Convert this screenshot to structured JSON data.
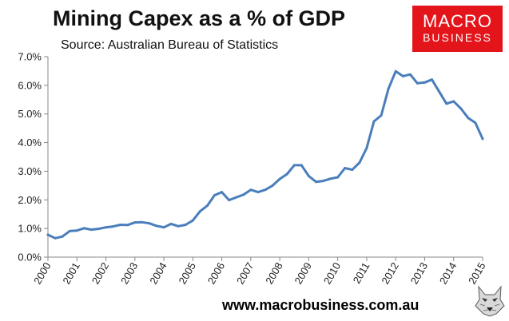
{
  "title": "Mining Capex as a % of GDP",
  "subtitle": "Source: Australian Bureau of Statistics",
  "logo": {
    "line1": "MACRO",
    "line2": "BUSINESS"
  },
  "footer": "www.macrobusiness.com.au",
  "colors": {
    "line": "#4a7ebb",
    "logo_bg": "#e4141b",
    "axis": "#888888"
  },
  "chart_data": {
    "type": "line",
    "title": "Mining Capex as a % of GDP",
    "xlabel": "",
    "ylabel": "",
    "xlim": [
      2000,
      2015
    ],
    "ylim": [
      0,
      7
    ],
    "grid": false,
    "y_ticks": [
      {
        "value": 0,
        "label": "0.0%"
      },
      {
        "value": 1,
        "label": "1.0%"
      },
      {
        "value": 2,
        "label": "2.0%"
      },
      {
        "value": 3,
        "label": "3.0%"
      },
      {
        "value": 4,
        "label": "4.0%"
      },
      {
        "value": 5,
        "label": "5.0%"
      },
      {
        "value": 6,
        "label": "6.0%"
      },
      {
        "value": 7,
        "label": "7.0%"
      }
    ],
    "x_ticks": [
      {
        "value": 2000,
        "label": "2000"
      },
      {
        "value": 2001,
        "label": "2001"
      },
      {
        "value": 2002,
        "label": "2002"
      },
      {
        "value": 2003,
        "label": "2003"
      },
      {
        "value": 2004,
        "label": "2004"
      },
      {
        "value": 2005,
        "label": "2005"
      },
      {
        "value": 2006,
        "label": "2006"
      },
      {
        "value": 2007,
        "label": "2007"
      },
      {
        "value": 2008,
        "label": "2008"
      },
      {
        "value": 2009,
        "label": "2009"
      },
      {
        "value": 2010,
        "label": "2010"
      },
      {
        "value": 2011,
        "label": "2011"
      },
      {
        "value": 2012,
        "label": "2012"
      },
      {
        "value": 2013,
        "label": "2013"
      },
      {
        "value": 2014,
        "label": "2014"
      },
      {
        "value": 2015,
        "label": "2015"
      }
    ],
    "series": [
      {
        "name": "Mining Capex % of GDP",
        "x": [
          2000.0,
          2000.25,
          2000.5,
          2000.75,
          2001.0,
          2001.25,
          2001.5,
          2001.75,
          2002.0,
          2002.25,
          2002.5,
          2002.75,
          2003.0,
          2003.25,
          2003.5,
          2003.75,
          2004.0,
          2004.25,
          2004.5,
          2004.75,
          2005.0,
          2005.25,
          2005.5,
          2005.75,
          2006.0,
          2006.25,
          2006.5,
          2006.75,
          2007.0,
          2007.25,
          2007.5,
          2007.75,
          2008.0,
          2008.25,
          2008.5,
          2008.75,
          2009.0,
          2009.25,
          2009.5,
          2009.75,
          2010.0,
          2010.25,
          2010.5,
          2010.75,
          2011.0,
          2011.25,
          2011.5,
          2011.75,
          2012.0,
          2012.25,
          2012.5,
          2012.75,
          2013.0,
          2013.25,
          2013.5,
          2013.75,
          2014.0,
          2014.25,
          2014.5,
          2014.75,
          2015.0
        ],
        "values": [
          0.78,
          0.66,
          0.72,
          0.91,
          0.93,
          1.01,
          0.96,
          0.99,
          1.04,
          1.07,
          1.13,
          1.12,
          1.21,
          1.22,
          1.18,
          1.09,
          1.04,
          1.16,
          1.08,
          1.13,
          1.28,
          1.6,
          1.8,
          2.16,
          2.27,
          1.99,
          2.09,
          2.18,
          2.35,
          2.27,
          2.35,
          2.5,
          2.73,
          2.9,
          3.21,
          3.21,
          2.83,
          2.63,
          2.66,
          2.74,
          2.79,
          3.11,
          3.05,
          3.3,
          3.81,
          4.74,
          4.95,
          5.88,
          6.49,
          6.32,
          6.38,
          6.07,
          6.1,
          6.2,
          5.78,
          5.36,
          5.44,
          5.19,
          4.86,
          4.69,
          4.13
        ]
      }
    ]
  }
}
